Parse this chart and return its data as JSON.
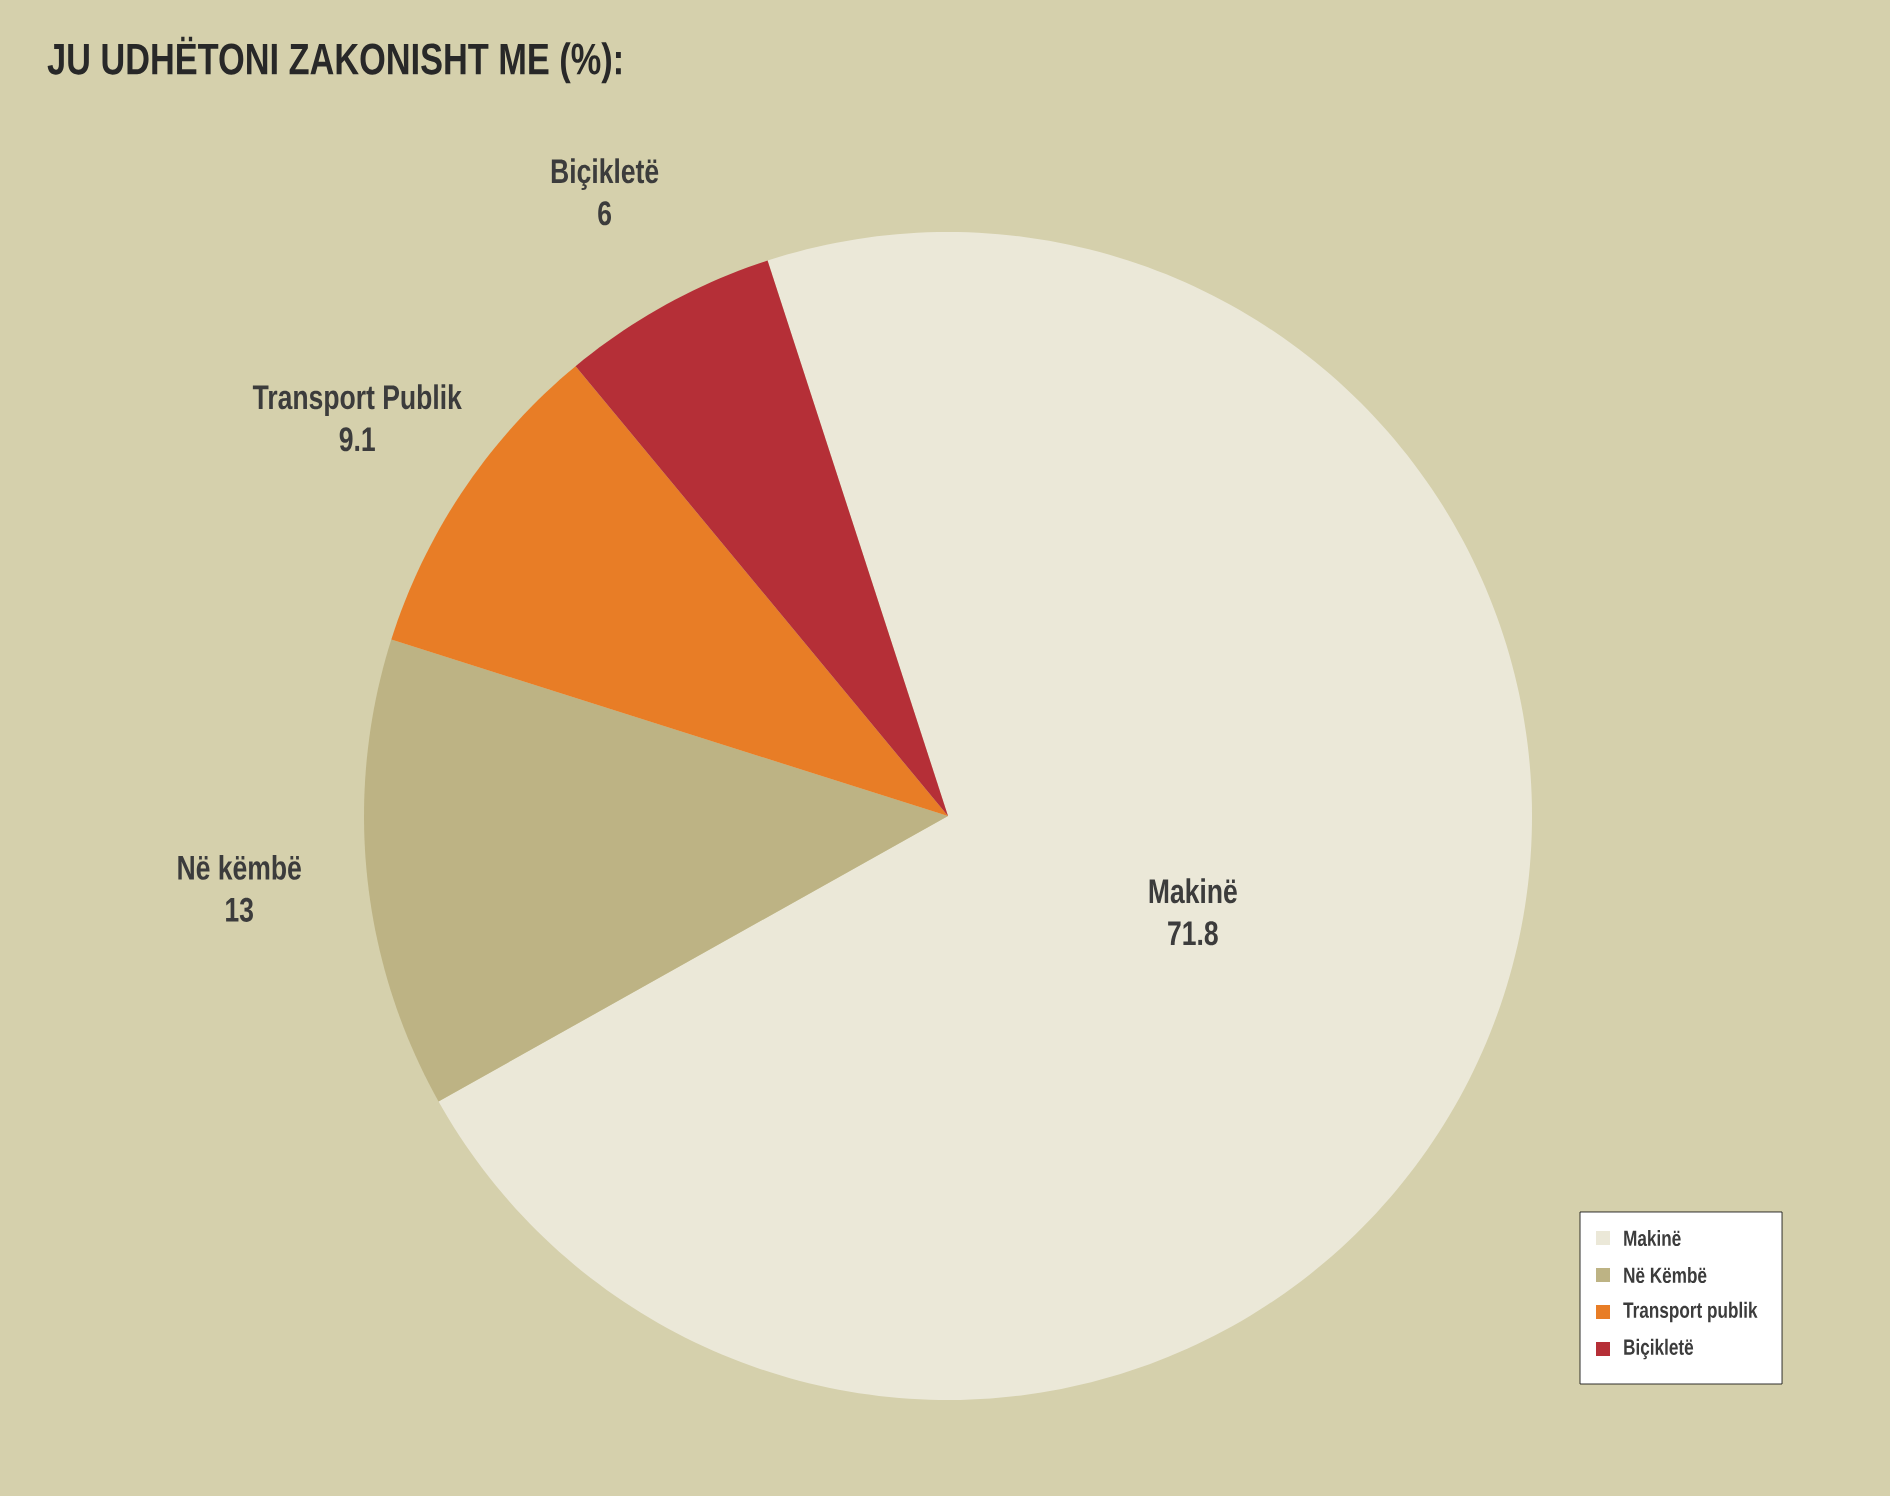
{
  "chart_data": {
    "type": "pie",
    "title": "JU UDHËTONI ZAKONISHT ME (%):",
    "categories": [
      "Makinë",
      "Në këmbë",
      "Transport Publik",
      "Biçikletë"
    ],
    "values": [
      71.8,
      13,
      9.1,
      6
    ],
    "colors": [
      "#ebe8d8",
      "#bdb384",
      "#e87d26",
      "#b52f37"
    ],
    "data_labels": true,
    "annotations": [
      "Makinë",
      "Në Këmbë",
      "Transport publik",
      "Biçikletë"
    ]
  }
}
